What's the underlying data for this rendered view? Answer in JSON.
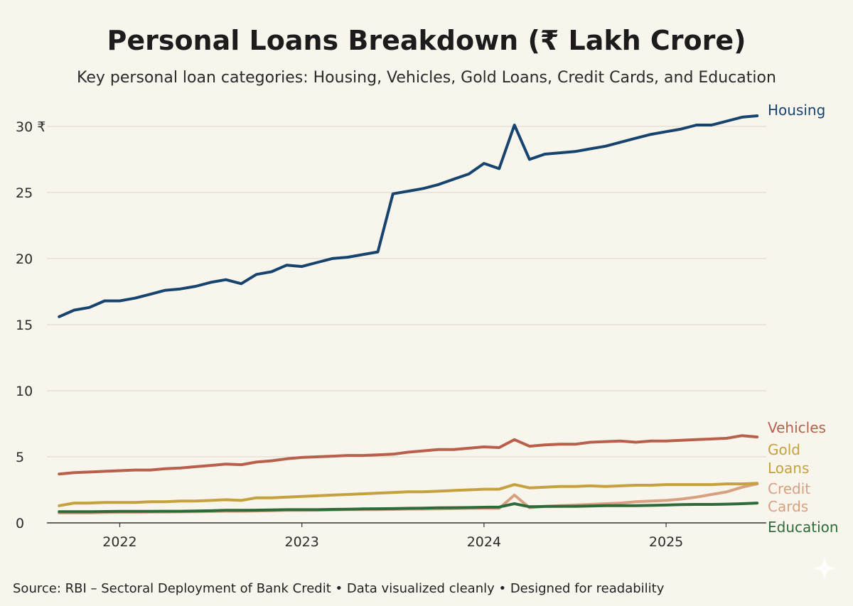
{
  "title": "Personal Loans Breakdown (₹ Lakh Crore)",
  "subtitle": "Key personal loan categories: Housing, Vehicles, Gold Loans, Credit Cards, and Education",
  "source": "Source: RBI – Sectoral Deployment of Bank Credit • Data visualized cleanly • Designed for readability",
  "chart_data": {
    "type": "line",
    "title": "Personal Loans Breakdown (₹ Lakh Crore)",
    "subtitle": "Key personal loan categories: Housing, Vehicles, Gold Loans, Credit Cards, and Education",
    "xlabel": "",
    "ylabel": "",
    "xlim": [
      2021.6,
      2025.55
    ],
    "ylim": [
      0,
      31.5
    ],
    "grid": true,
    "legend": "inline-right",
    "x_ticks": [
      2022,
      2023,
      2024,
      2025
    ],
    "x_tick_labels": [
      "2022",
      "2023",
      "2024",
      "2025"
    ],
    "y_ticks": [
      0,
      5,
      10,
      15,
      20,
      25,
      30
    ],
    "y_tick_labels": [
      "0",
      "5",
      "10",
      "15",
      "20",
      "25",
      "30 ₹"
    ],
    "x": [
      2021.667,
      2021.75,
      2021.833,
      2021.917,
      2022.0,
      2022.083,
      2022.167,
      2022.25,
      2022.333,
      2022.417,
      2022.5,
      2022.583,
      2022.667,
      2022.75,
      2022.833,
      2022.917,
      2023.0,
      2023.083,
      2023.167,
      2023.25,
      2023.333,
      2023.417,
      2023.5,
      2023.583,
      2023.667,
      2023.75,
      2023.833,
      2023.917,
      2024.0,
      2024.083,
      2024.167,
      2024.25,
      2024.333,
      2024.417,
      2024.5,
      2024.583,
      2024.667,
      2024.75,
      2024.833,
      2024.917,
      2025.0,
      2025.083,
      2025.167,
      2025.25,
      2025.333,
      2025.417,
      2025.5
    ],
    "series": [
      {
        "name": "Housing",
        "color": "#17436f",
        "values": [
          15.6,
          16.1,
          16.3,
          16.8,
          16.8,
          17.0,
          17.3,
          17.6,
          17.7,
          17.9,
          18.2,
          18.4,
          18.1,
          18.8,
          19.0,
          19.5,
          19.4,
          19.7,
          20.0,
          20.1,
          20.3,
          20.5,
          24.9,
          25.1,
          25.3,
          25.6,
          26.0,
          26.4,
          27.2,
          26.8,
          30.1,
          27.5,
          27.9,
          28.0,
          28.1,
          28.3,
          28.5,
          28.8,
          29.1,
          29.4,
          29.6,
          29.8,
          30.1,
          30.1,
          30.4,
          30.7,
          30.8
        ]
      },
      {
        "name": "Vehicles",
        "color": "#b8604b",
        "values": [
          3.7,
          3.8,
          3.85,
          3.9,
          3.95,
          4.0,
          4.0,
          4.1,
          4.15,
          4.25,
          4.35,
          4.45,
          4.4,
          4.6,
          4.7,
          4.85,
          4.95,
          5.0,
          5.05,
          5.1,
          5.1,
          5.15,
          5.2,
          5.35,
          5.45,
          5.55,
          5.55,
          5.65,
          5.75,
          5.7,
          6.3,
          5.8,
          5.9,
          5.95,
          5.95,
          6.1,
          6.15,
          6.2,
          6.1,
          6.2,
          6.2,
          6.25,
          6.3,
          6.35,
          6.4,
          6.6,
          6.5
        ]
      },
      {
        "name": "Gold Loans",
        "color": "#c5a23d",
        "values": [
          1.3,
          1.5,
          1.5,
          1.55,
          1.55,
          1.55,
          1.6,
          1.6,
          1.65,
          1.65,
          1.7,
          1.75,
          1.7,
          1.9,
          1.9,
          1.95,
          2.0,
          2.05,
          2.1,
          2.15,
          2.2,
          2.25,
          2.3,
          2.35,
          2.35,
          2.4,
          2.45,
          2.5,
          2.55,
          2.55,
          2.9,
          2.65,
          2.7,
          2.75,
          2.75,
          2.8,
          2.75,
          2.8,
          2.85,
          2.85,
          2.9,
          2.9,
          2.9,
          2.9,
          2.95,
          2.95,
          3.0
        ]
      },
      {
        "name": "Credit Cards",
        "color": "#d8a080",
        "values": [
          0.75,
          0.75,
          0.75,
          0.78,
          0.8,
          0.8,
          0.82,
          0.82,
          0.84,
          0.85,
          0.86,
          0.88,
          0.88,
          0.9,
          0.92,
          0.95,
          0.95,
          0.96,
          0.98,
          1.0,
          1.0,
          1.0,
          1.02,
          1.05,
          1.05,
          1.06,
          1.08,
          1.1,
          1.1,
          1.1,
          2.1,
          1.15,
          1.25,
          1.3,
          1.35,
          1.4,
          1.45,
          1.5,
          1.6,
          1.65,
          1.7,
          1.8,
          1.95,
          2.15,
          2.35,
          2.7,
          2.95
        ]
      },
      {
        "name": "Education",
        "color": "#2e6b3a",
        "values": [
          0.85,
          0.85,
          0.85,
          0.86,
          0.87,
          0.87,
          0.87,
          0.88,
          0.88,
          0.9,
          0.92,
          0.95,
          0.95,
          0.96,
          0.98,
          1.0,
          1.0,
          1.0,
          1.02,
          1.04,
          1.06,
          1.07,
          1.08,
          1.1,
          1.12,
          1.14,
          1.15,
          1.16,
          1.18,
          1.2,
          1.45,
          1.22,
          1.24,
          1.25,
          1.25,
          1.28,
          1.3,
          1.3,
          1.3,
          1.32,
          1.35,
          1.38,
          1.4,
          1.4,
          1.42,
          1.45,
          1.5
        ]
      }
    ]
  }
}
